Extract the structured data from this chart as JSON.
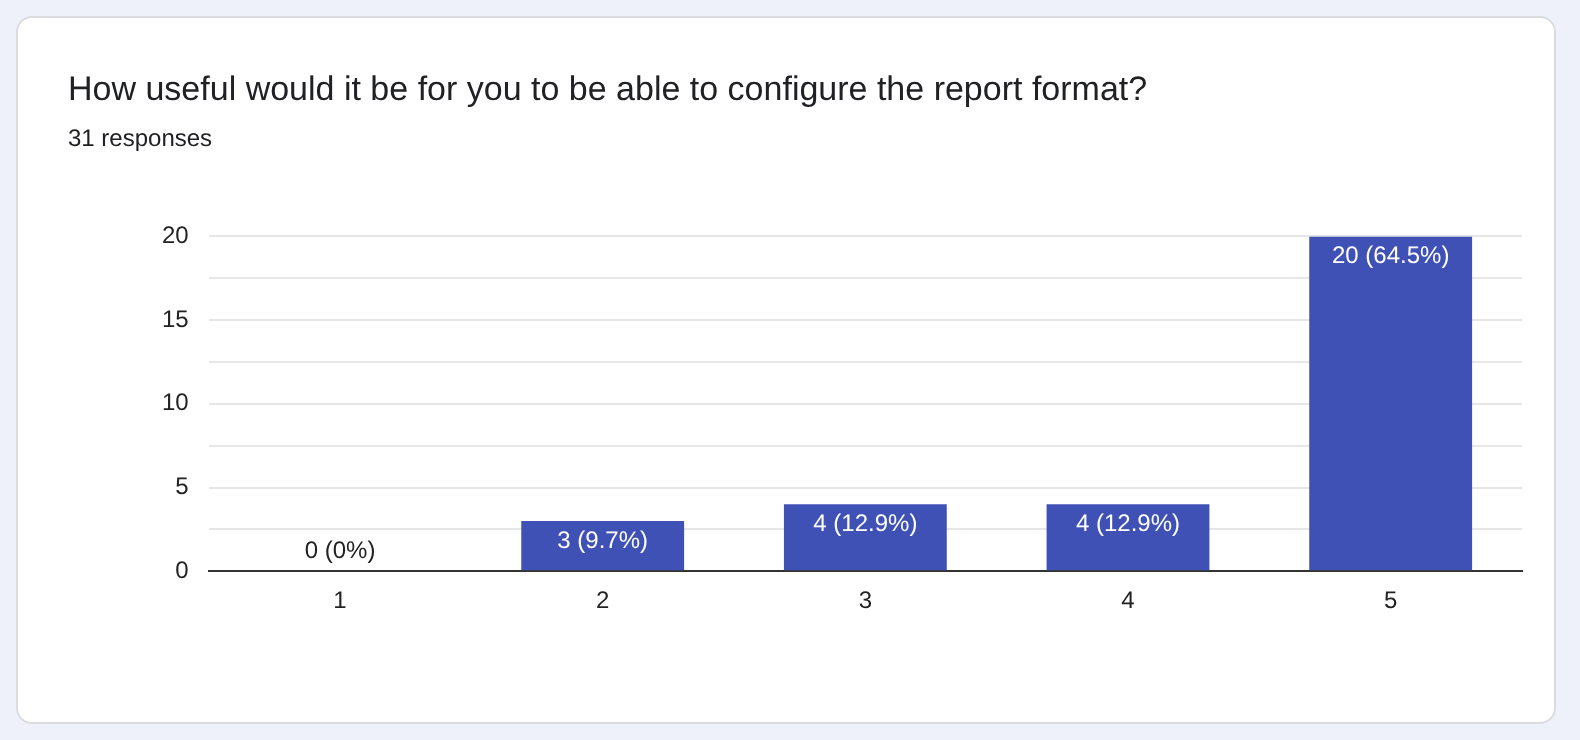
{
  "chart_data": {
    "type": "bar",
    "title": "How useful would it be for you to be able to configure the report format?",
    "subtitle": "31 responses",
    "categories": [
      "1",
      "2",
      "3",
      "4",
      "5"
    ],
    "values": [
      0,
      3,
      4,
      4,
      20
    ],
    "value_labels": [
      "0 (0%)",
      "3 (9.7%)",
      "4 (12.9%)",
      "4 (12.9%)",
      "20 (64.5%)"
    ],
    "color": "#3f51b5",
    "ylim": [
      0,
      20
    ],
    "yticks": [
      0,
      {
        "value": 2.5,
        "label": null
      },
      5,
      {
        "value": 7.5,
        "label": null
      },
      10,
      {
        "value": 12.5,
        "label": null
      },
      15,
      {
        "value": 17.5,
        "label": null
      },
      20
    ],
    "grid": "y"
  }
}
